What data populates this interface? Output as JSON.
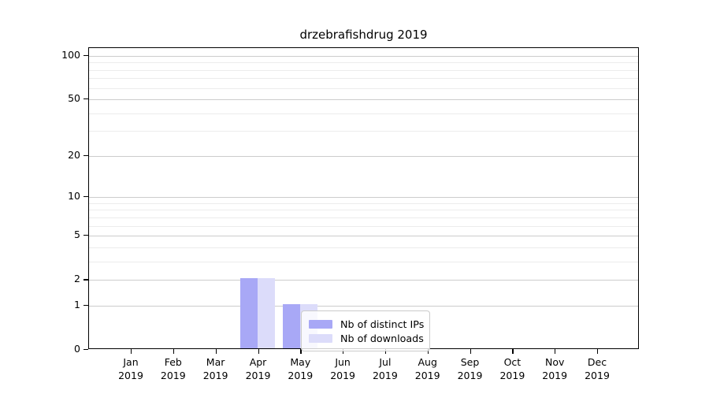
{
  "chart_data": {
    "type": "bar",
    "title": "drzebrafishdrug 2019",
    "categories": [
      {
        "month": "Jan",
        "year": "2019"
      },
      {
        "month": "Feb",
        "year": "2019"
      },
      {
        "month": "Mar",
        "year": "2019"
      },
      {
        "month": "Apr",
        "year": "2019"
      },
      {
        "month": "May",
        "year": "2019"
      },
      {
        "month": "Jun",
        "year": "2019"
      },
      {
        "month": "Jul",
        "year": "2019"
      },
      {
        "month": "Aug",
        "year": "2019"
      },
      {
        "month": "Sep",
        "year": "2019"
      },
      {
        "month": "Oct",
        "year": "2019"
      },
      {
        "month": "Nov",
        "year": "2019"
      },
      {
        "month": "Dec",
        "year": "2019"
      }
    ],
    "series": [
      {
        "name": "Nb of distinct IPs",
        "color": "#a8a8f6",
        "values": [
          0,
          0,
          0,
          2,
          1,
          0,
          0,
          0,
          0,
          0,
          0,
          0
        ]
      },
      {
        "name": "Nb of downloads",
        "color": "#dcdcfa",
        "values": [
          0,
          0,
          0,
          2,
          1,
          0,
          0,
          0,
          0,
          0,
          0,
          0
        ]
      }
    ],
    "y_axis": {
      "scale": "log1p",
      "ticks": [
        0,
        1,
        2,
        5,
        10,
        20,
        50,
        100
      ],
      "minor_ticks": [
        3,
        4,
        6,
        7,
        8,
        9,
        30,
        40,
        60,
        70,
        80,
        90
      ],
      "ylim": [
        0,
        113
      ]
    },
    "x_axis": {
      "label_format": "month-over-year"
    },
    "grid": "horizontal, major and minor lines",
    "legend": {
      "position": "lower center",
      "framed": true,
      "frame_alpha": 0.8
    },
    "colors": {
      "background": "#ffffff",
      "spine": "#000000",
      "text": "#000000",
      "major_grid": "#cccccc",
      "minor_grid": "#ececec"
    }
  }
}
